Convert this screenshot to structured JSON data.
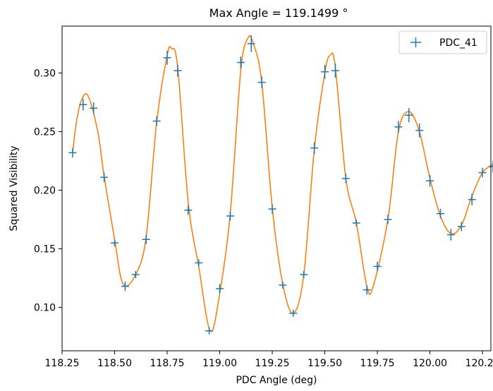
{
  "chart_data": {
    "type": "scatter",
    "title": "Max Angle = 119.1499 °",
    "xlabel": "PDC Angle (deg)",
    "ylabel": "Squared Visibility",
    "xlim": [
      118.25,
      120.29
    ],
    "ylim": [
      0.063,
      0.34
    ],
    "x_ticks": [
      118.25,
      118.5,
      118.75,
      119.0,
      119.25,
      119.5,
      119.75,
      120.0,
      120.25
    ],
    "x_tick_labels": [
      "118.25",
      "118.50",
      "118.75",
      "119.00",
      "119.25",
      "119.50",
      "119.75",
      "120.00",
      "120.25"
    ],
    "y_ticks": [
      0.1,
      0.15,
      0.2,
      0.25,
      0.3
    ],
    "y_tick_labels": [
      "0.10",
      "0.15",
      "0.20",
      "0.25",
      "0.30"
    ],
    "grid": false,
    "legend_position": "top-right",
    "series": [
      {
        "name": "PDC_41",
        "kind": "errorbar-markers",
        "color": "#1f77b4",
        "x": [
          118.3,
          118.35,
          118.4,
          118.45,
          118.5,
          118.55,
          118.6,
          118.65,
          118.7,
          118.75,
          118.8,
          118.85,
          118.9,
          118.95,
          119.0,
          119.05,
          119.1,
          119.15,
          119.2,
          119.25,
          119.3,
          119.35,
          119.4,
          119.45,
          119.5,
          119.55,
          119.6,
          119.65,
          119.7,
          119.75,
          119.8,
          119.85,
          119.9,
          119.95,
          120.0,
          120.05,
          120.1,
          120.15,
          120.2,
          120.25,
          120.3
        ],
        "y": [
          0.232,
          0.273,
          0.27,
          0.211,
          0.155,
          0.118,
          0.128,
          0.158,
          0.259,
          0.313,
          0.302,
          0.183,
          0.138,
          0.08,
          0.116,
          0.178,
          0.309,
          0.325,
          0.292,
          0.184,
          0.119,
          0.095,
          0.128,
          0.236,
          0.301,
          0.302,
          0.21,
          0.172,
          0.115,
          0.135,
          0.175,
          0.254,
          0.264,
          0.251,
          0.208,
          0.18,
          0.162,
          0.169,
          0.192,
          0.215,
          0.22
        ],
        "yerr": [
          0.004,
          0.005,
          0.005,
          0.004,
          0.003,
          0.004,
          0.003,
          0.004,
          0.004,
          0.006,
          0.005,
          0.004,
          0.003,
          0.003,
          0.004,
          0.004,
          0.005,
          0.007,
          0.005,
          0.004,
          0.003,
          0.003,
          0.003,
          0.005,
          0.006,
          0.006,
          0.004,
          0.003,
          0.004,
          0.004,
          0.004,
          0.005,
          0.006,
          0.006,
          0.005,
          0.004,
          0.005,
          0.004,
          0.005,
          0.004,
          0.005
        ]
      },
      {
        "kind": "smooth-fit-line",
        "color": "#ff7f0e",
        "x": [
          118.3,
          118.32,
          118.345,
          118.375,
          118.42,
          118.45,
          118.5,
          118.54,
          118.6,
          118.65,
          118.7,
          118.75,
          118.77,
          118.8,
          118.85,
          118.9,
          118.955,
          119.0,
          119.05,
          119.1,
          119.135,
          119.16,
          119.2,
          119.25,
          119.3,
          119.35,
          119.4,
          119.45,
          119.5,
          119.525,
          119.55,
          119.6,
          119.65,
          119.7,
          119.73,
          119.8,
          119.85,
          119.9,
          119.95,
          120.0,
          120.05,
          120.1,
          120.15,
          120.2,
          120.25,
          120.3
        ],
        "y": [
          0.232,
          0.26,
          0.278,
          0.28,
          0.25,
          0.212,
          0.158,
          0.12,
          0.128,
          0.16,
          0.258,
          0.315,
          0.321,
          0.305,
          0.19,
          0.135,
          0.08,
          0.112,
          0.18,
          0.302,
          0.33,
          0.325,
          0.292,
          0.185,
          0.12,
          0.095,
          0.128,
          0.235,
          0.3,
          0.315,
          0.305,
          0.21,
          0.172,
          0.118,
          0.118,
          0.175,
          0.25,
          0.267,
          0.25,
          0.21,
          0.178,
          0.163,
          0.17,
          0.195,
          0.215,
          0.222
        ]
      }
    ]
  }
}
